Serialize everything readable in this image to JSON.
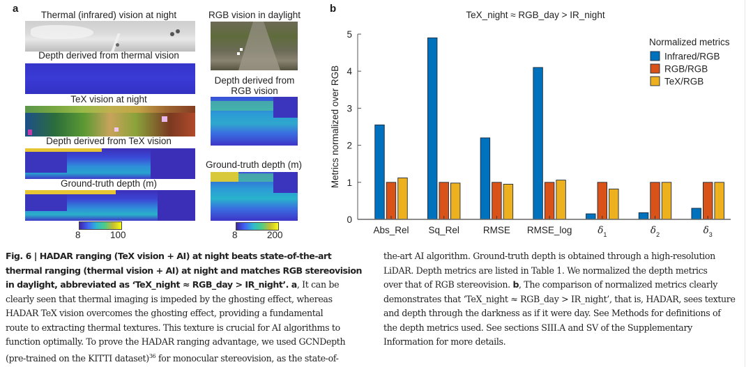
{
  "panel_a": {
    "letter": "a",
    "left_column": {
      "titles": [
        "Thermal (infrared) vision at night",
        "Depth derived from thermal vision",
        "TeX vision at night",
        "Depth derived from TeX vision",
        "Ground-truth depth (m)"
      ],
      "colorbar": {
        "min_label": "8",
        "max_label": "100"
      }
    },
    "right_column": {
      "titles": [
        "RGB vision in daylight",
        "Depth derived from",
        "RGB vision",
        "Ground-truth depth (m)"
      ],
      "colorbar": {
        "min_label": "8",
        "max_label": "200"
      }
    }
  },
  "panel_b": {
    "letter": "b"
  },
  "chart_data": {
    "type": "bar",
    "title": "TeX_night ≈ RGB_day > IR_night",
    "xlabel": "",
    "ylabel": "Metrics normalized over RGB",
    "ylim": [
      0,
      5
    ],
    "yticks": [
      0,
      1,
      2,
      3,
      4,
      5
    ],
    "grid": false,
    "categories": [
      "Abs_Rel",
      "Sq_Rel",
      "RMSE",
      "RMSE_log",
      "δ",
      "δ",
      "δ"
    ],
    "category_subscripts": [
      "",
      "",
      "",
      "",
      "1",
      "2",
      "3"
    ],
    "legend": {
      "title": "Normalized metrics",
      "placement": "top-right"
    },
    "series": [
      {
        "name": "Infrared/RGB",
        "color": "#0072bd",
        "values": [
          2.55,
          4.9,
          2.2,
          4.1,
          0.15,
          0.18,
          0.3
        ]
      },
      {
        "name": "RGB/RGB",
        "color": "#d95319",
        "values": [
          1.0,
          1.0,
          1.0,
          1.0,
          1.0,
          1.0,
          1.0
        ]
      },
      {
        "name": "TeX/RGB",
        "color": "#edb120",
        "values": [
          1.12,
          0.98,
          0.95,
          1.06,
          0.82,
          1.0,
          1.0
        ]
      }
    ]
  },
  "caption": {
    "left": {
      "bold_lines": [
        "Fig. 6 | HADAR ranging (TeX vision + AI) at night beats state-of-the-art",
        "thermal ranging (thermal vision + AI) at night and matches RGB stereovision",
        "in daylight, abbreviated as ‘TeX_night ≈ RGB_day > IR_night’. a"
      ],
      "line3_rest": ", It can be",
      "lines": [
        "clearly seen that thermal imaging is impeded by the ghosting effect, whereas",
        "HADAR TeX vision overcomes the ghosting effect, providing a fundamental",
        "route to extracting thermal textures. This texture is crucial for AI algorithms to",
        "function optimally. To prove the HADAR ranging advantage, we used GCNDepth"
      ],
      "last_line_start": "(pre-trained on the KITTI dataset)",
      "citation": "36",
      "last_line_end": " for monocular stereovision, as the state-of-"
    },
    "right": {
      "lines_before_b": [
        "the-art AI algorithm. Ground-truth depth is obtained through a high-resolution",
        "LiDAR. Depth metrics are listed in Table 1. We normalized the depth metrics"
      ],
      "line3_start": "over that of RGB stereovision. ",
      "line3_bold": "b",
      "line3_end": ", The comparison of normalized metrics clearly",
      "lines_after": [
        "demonstrates that ‘TeX_night ≈ RGB_day > IR_night’, that is, HADAR, sees texture",
        "and depth through the darkness as if it were day. See Methods for definitions of",
        "the depth metrics used. See sections SIII.A and SV of the Supplementary",
        "Information for more details."
      ]
    }
  }
}
